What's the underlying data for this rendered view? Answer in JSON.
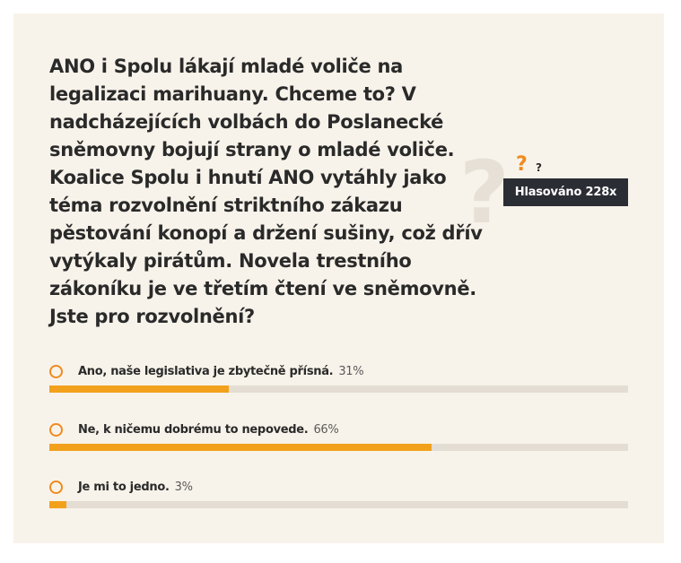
{
  "poll": {
    "question": "ANO i Spolu lákají mladé voliče na legalizaci marihuany. Chceme to? V nadcházejících volbách do Poslanecké sněmovny bojují strany o mladé voliče. Koalice Spolu i hnutí ANO vytáhly jako téma rozvolnění striktního zákazu pěstování konopí a držení sušiny, což dřív vytýkaly pirátům. Novela trestního zákoníku je ve třetím čtení ve sněmovně. Jste pro rozvolnění?",
    "vote_count": "Hlasováno 228x",
    "options": [
      {
        "label": "Ano, naše legislativa je zbytečně přísná.",
        "percent_text": "31%",
        "share": 0.31
      },
      {
        "label": "Ne, k ničemu dobrému to nepovede.",
        "percent_text": "66%",
        "share": 0.66
      },
      {
        "label": "Je mi to jedno.",
        "percent_text": "3%",
        "share": 0.03
      }
    ]
  },
  "decor": {
    "icon": "question-mark-icon"
  },
  "colors": {
    "accent": "#f08a1e",
    "bar_fill": "#f2a11c",
    "bar_track": "#e3ddd3",
    "card_bg": "#f8f3ea",
    "badge_bg": "#2b2d35",
    "text": "#2a2a2a"
  }
}
